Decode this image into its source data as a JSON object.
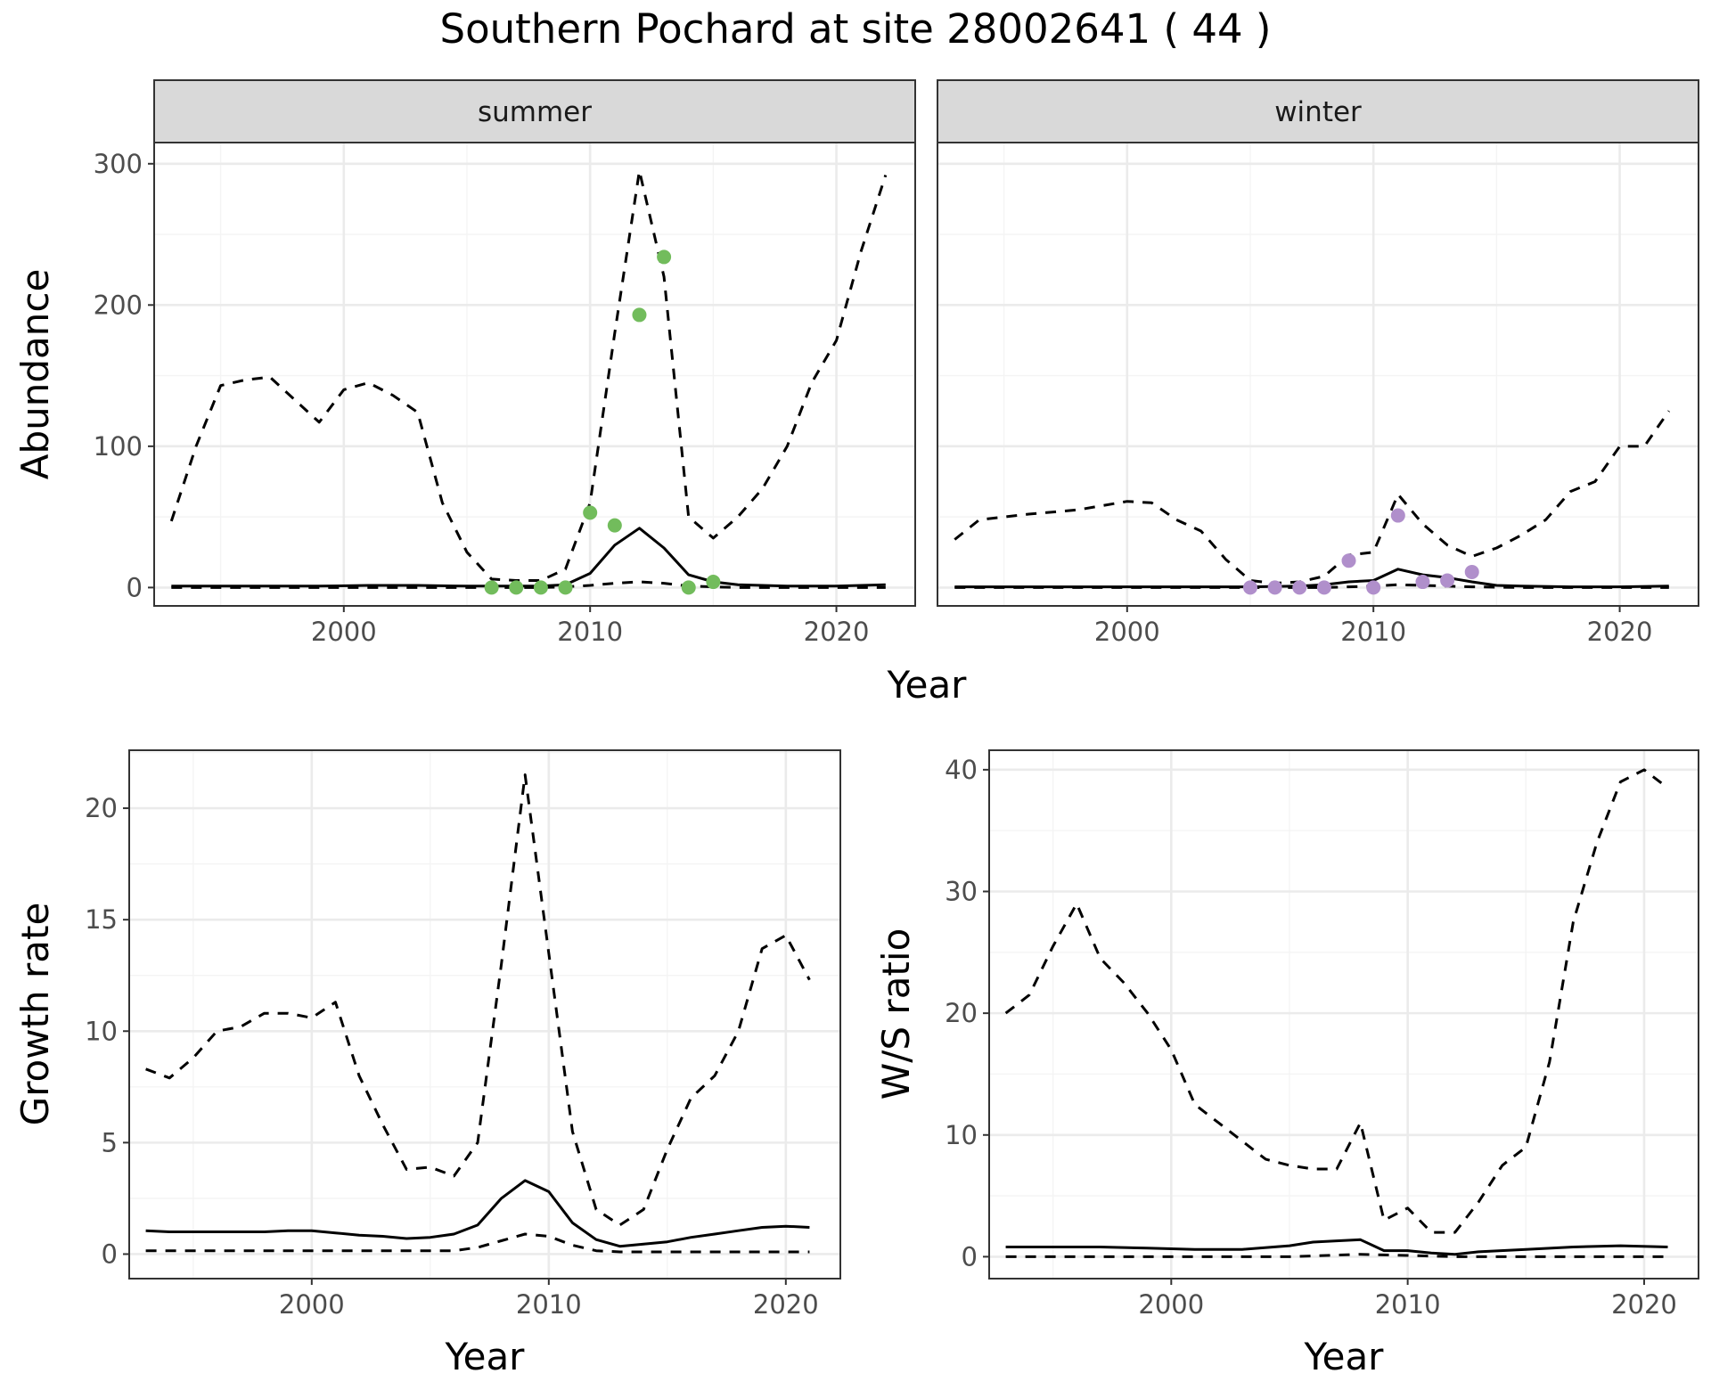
{
  "figure_title": "Southern Pochard at site 28002641 ( 44 )",
  "colors": {
    "summer_points": "#72bc5c",
    "winter_points": "#b08fcb",
    "strip_fill": "#d9d9d9",
    "grid_major": "#ebebeb",
    "grid_minor": "#f4f4f4",
    "line": "#000000"
  },
  "chart_data": [
    {
      "type": "line",
      "panel": "abundance",
      "facets": [
        "summer",
        "winter"
      ],
      "xlabel": "Year",
      "ylabel": "Abundance",
      "xlim": [
        1992.3,
        2023.2
      ],
      "ylim": [
        -13,
        315
      ],
      "xticks": [
        2000,
        2010,
        2020
      ],
      "yticks": [
        0,
        100,
        200,
        300
      ],
      "grid": true,
      "summer": {
        "estimate": {
          "x": [
            1993,
            1995,
            1997,
            1999,
            2001,
            2003,
            2005,
            2006,
            2007,
            2008,
            2009,
            2010,
            2011,
            2012,
            2013,
            2014,
            2015,
            2016,
            2018,
            2020,
            2022
          ],
          "y": [
            1,
            1,
            1,
            1,
            1.5,
            1.5,
            1,
            1,
            1,
            1,
            2,
            10,
            30,
            42,
            28,
            9,
            4,
            2,
            1,
            1,
            2
          ]
        },
        "lower": {
          "x": [
            1993,
            2000,
            2006,
            2008,
            2009,
            2010,
            2011,
            2012,
            2013,
            2014,
            2016,
            2022
          ],
          "y": [
            0,
            0,
            0,
            0,
            0.5,
            1.5,
            3,
            4,
            3,
            1,
            0,
            0
          ]
        },
        "upper": {
          "x": [
            1993,
            1994,
            1995,
            1996,
            1997,
            1998,
            1999,
            2000,
            2001,
            2002,
            2003,
            2004,
            2005,
            2006,
            2007,
            2008,
            2009,
            2010,
            2011,
            2012,
            2013,
            2014,
            2015,
            2016,
            2017,
            2018,
            2019,
            2020,
            2021,
            2022
          ],
          "y": [
            47,
            100,
            143,
            147,
            149,
            133,
            117,
            140,
            145,
            136,
            124,
            60,
            25,
            6,
            5,
            5,
            13,
            60,
            180,
            295,
            220,
            50,
            35,
            50,
            70,
            100,
            145,
            175,
            238,
            292
          ]
        },
        "observed": {
          "x": [
            2006,
            2007,
            2008,
            2009,
            2010,
            2011,
            2012,
            2013,
            2014,
            2015
          ],
          "y": [
            0,
            0,
            0,
            0,
            53,
            44,
            193,
            234,
            0,
            4
          ]
        }
      },
      "winter": {
        "estimate": {
          "x": [
            1993,
            1995,
            1997,
            1999,
            2001,
            2003,
            2005,
            2007,
            2008,
            2009,
            2010,
            2011,
            2012,
            2013,
            2014,
            2015,
            2016,
            2018,
            2020,
            2022
          ],
          "y": [
            0.5,
            0.5,
            0.5,
            0.5,
            0.5,
            0.5,
            0.5,
            1,
            2,
            4,
            5,
            13,
            9,
            7,
            4,
            1.5,
            1,
            0.5,
            0.5,
            1
          ]
        },
        "lower": {
          "x": [
            1993,
            2005,
            2008,
            2009,
            2010,
            2011,
            2012,
            2013,
            2014,
            2016,
            2022
          ],
          "y": [
            0,
            0,
            0,
            0.5,
            1,
            2,
            1.5,
            1,
            0.5,
            0,
            0
          ]
        },
        "upper": {
          "x": [
            1993,
            1994,
            1996,
            1998,
            2000,
            2001,
            2002,
            2003,
            2004,
            2005,
            2006,
            2007,
            2008,
            2009,
            2010,
            2011,
            2012,
            2013,
            2014,
            2015,
            2016,
            2017,
            2018,
            2019,
            2020,
            2021,
            2022
          ],
          "y": [
            34,
            48,
            52,
            55,
            61,
            60,
            48,
            40,
            20,
            5,
            3,
            4,
            8,
            23,
            25,
            66,
            45,
            30,
            22,
            28,
            37,
            48,
            68,
            75,
            100,
            100,
            125
          ]
        },
        "observed": {
          "x": [
            2005,
            2006,
            2007,
            2008,
            2009,
            2010,
            2011,
            2012,
            2013,
            2014
          ],
          "y": [
            0,
            0,
            0,
            0,
            19,
            0,
            51,
            4,
            5,
            11
          ]
        }
      }
    },
    {
      "type": "line",
      "panel": "growth",
      "xlabel": "Year",
      "ylabel": "Growth rate",
      "xlim": [
        1992.3,
        2022.3
      ],
      "ylim": [
        -1.1,
        22.6
      ],
      "xticks": [
        2000,
        2010,
        2020
      ],
      "yticks": [
        0,
        5,
        10,
        15,
        20
      ],
      "grid": true,
      "estimate": {
        "x": [
          1993,
          1994,
          1995,
          1996,
          1997,
          1998,
          1999,
          2000,
          2001,
          2002,
          2003,
          2004,
          2005,
          2006,
          2007,
          2008,
          2009,
          2010,
          2011,
          2012,
          2013,
          2014,
          2015,
          2016,
          2017,
          2018,
          2019,
          2020,
          2021
        ],
        "y": [
          1.05,
          1.0,
          1.0,
          1.0,
          1.0,
          1.0,
          1.05,
          1.05,
          0.95,
          0.85,
          0.8,
          0.7,
          0.75,
          0.9,
          1.3,
          2.5,
          3.3,
          2.8,
          1.4,
          0.65,
          0.35,
          0.45,
          0.55,
          0.75,
          0.9,
          1.05,
          1.2,
          1.25,
          1.2
        ]
      },
      "lower": {
        "x": [
          1993,
          2006,
          2007,
          2008,
          2009,
          2010,
          2011,
          2012,
          2013,
          2016,
          2021
        ],
        "y": [
          0.15,
          0.15,
          0.3,
          0.6,
          0.9,
          0.8,
          0.4,
          0.15,
          0.1,
          0.1,
          0.1
        ]
      },
      "upper": {
        "x": [
          1993,
          1994,
          1995,
          1996,
          1997,
          1998,
          1999,
          2000,
          2001,
          2002,
          2003,
          2004,
          2005,
          2006,
          2007,
          2008,
          2009,
          2010,
          2011,
          2012,
          2013,
          2014,
          2015,
          2016,
          2017,
          2018,
          2019,
          2020,
          2021
        ],
        "y": [
          8.3,
          7.9,
          8.8,
          10.0,
          10.2,
          10.8,
          10.8,
          10.6,
          11.3,
          8.0,
          5.8,
          3.8,
          3.9,
          3.5,
          5.0,
          13.0,
          21.5,
          13.5,
          5.5,
          2.0,
          1.3,
          2.0,
          4.7,
          7.0,
          8.0,
          10.0,
          13.7,
          14.3,
          12.3
        ]
      }
    },
    {
      "type": "line",
      "panel": "ratio",
      "xlabel": "Year",
      "ylabel": "W/S ratio",
      "xlim": [
        1992.3,
        2022.3
      ],
      "ylim": [
        -1.8,
        41.6
      ],
      "xticks": [
        2000,
        2010,
        2020
      ],
      "yticks": [
        0,
        10,
        20,
        30,
        40
      ],
      "grid": true,
      "estimate": {
        "x": [
          1993,
          1995,
          1997,
          1999,
          2001,
          2003,
          2005,
          2006,
          2007,
          2008,
          2009,
          2010,
          2011,
          2012,
          2013,
          2015,
          2017,
          2019,
          2021
        ],
        "y": [
          0.8,
          0.8,
          0.8,
          0.7,
          0.6,
          0.6,
          0.9,
          1.2,
          1.3,
          1.4,
          0.5,
          0.5,
          0.3,
          0.2,
          0.4,
          0.6,
          0.8,
          0.9,
          0.8
        ]
      },
      "lower": {
        "x": [
          1993,
          2000,
          2005,
          2008,
          2010,
          2012,
          2021
        ],
        "y": [
          0,
          0,
          0,
          0.2,
          0.1,
          0,
          0
        ]
      },
      "upper": {
        "x": [
          1993,
          1994,
          1995,
          1996,
          1997,
          1998,
          1999,
          2000,
          2001,
          2002,
          2003,
          2004,
          2005,
          2006,
          2007,
          2008,
          2009,
          2010,
          2011,
          2012,
          2013,
          2014,
          2015,
          2016,
          2017,
          2018,
          2019,
          2020,
          2021
        ],
        "y": [
          20,
          21.5,
          25.5,
          29,
          24.5,
          22.5,
          20,
          17,
          12.5,
          11,
          9.5,
          8,
          7.5,
          7.2,
          7.2,
          11,
          3,
          4,
          2,
          2,
          4.5,
          7.5,
          9,
          16,
          27.5,
          34,
          39,
          40,
          38.5
        ]
      }
    }
  ]
}
